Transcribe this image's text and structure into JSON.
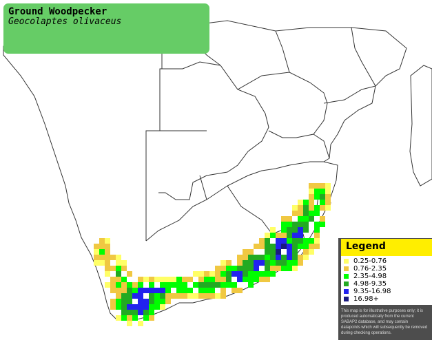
{
  "title": {
    "common_name": "Ground Woodpecker",
    "scientific_name": "Geocolaptes olivaceus"
  },
  "legend": {
    "heading": "Legend",
    "items": [
      {
        "label": "0.25-0.76",
        "color": "#ffff66"
      },
      {
        "label": "0.76-2.35",
        "color": "#f0c842"
      },
      {
        "label": "2.35-4.98",
        "color": "#00ff00"
      },
      {
        "label": "4.98-9.35",
        "color": "#22aa22"
      },
      {
        "label": "9.35-16.98",
        "color": "#2222ee"
      },
      {
        "label": "16.98+",
        "color": "#1a1a80"
      }
    ],
    "disclaimer": "This map is for illustrative purposes only; it is produced automatically from the current SABAP2 database, and may contain datapoints which will subsequently be removed during checking operations."
  },
  "colors": {
    "title_box": "#66cc66",
    "legend_header": "#ffee00",
    "legend_panel": "#4d4d4d",
    "map_outline": "#333333"
  }
}
